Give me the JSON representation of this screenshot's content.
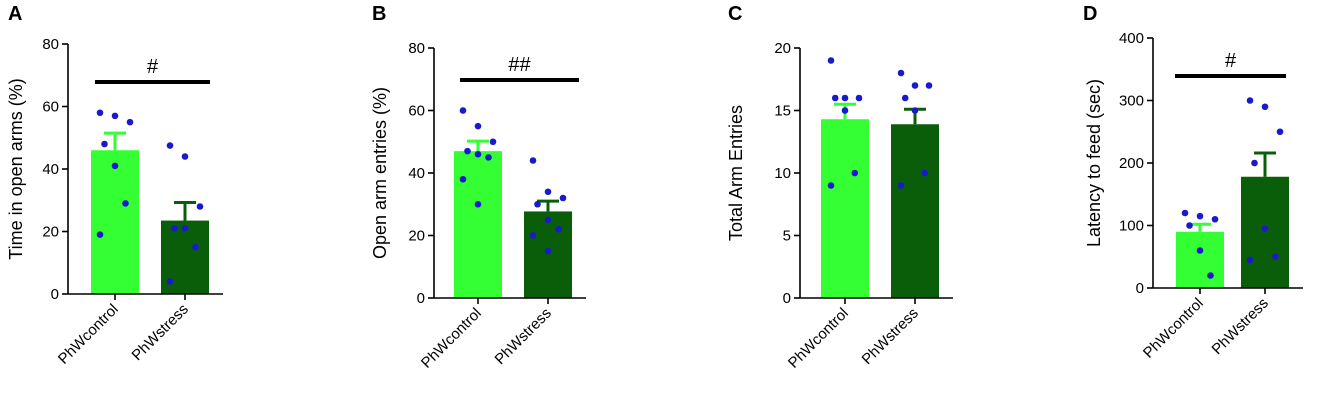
{
  "colors": {
    "control_bar": "#33ff33",
    "stress_bar": "#0a5e0a",
    "dot": "#1a1acc",
    "axis": "#000000"
  },
  "chart_data": [
    {
      "type": "bar",
      "panel": "A",
      "ylabel": "Time in open arms (%)",
      "ylim": [
        0,
        80
      ],
      "yticks": [
        0,
        20,
        40,
        60,
        80
      ],
      "categories": [
        "PhWcontrol",
        "PhWstress"
      ],
      "values": [
        46,
        23.5
      ],
      "sem": [
        5.5,
        5.8
      ],
      "points": [
        [
          58,
          57,
          55,
          48,
          41,
          29,
          19
        ],
        [
          47.5,
          44,
          28,
          21,
          21,
          15,
          4
        ]
      ],
      "significance": "#"
    },
    {
      "type": "bar",
      "panel": "B",
      "ylabel": "Open arm entries (%)",
      "ylim": [
        0,
        80
      ],
      "yticks": [
        0,
        20,
        40,
        60,
        80
      ],
      "categories": [
        "PhWcontrol",
        "PhWstress"
      ],
      "values": [
        47,
        27.7
      ],
      "sem": [
        3.2,
        3.3
      ],
      "points": [
        [
          60,
          55,
          50,
          47,
          46,
          45,
          38,
          30
        ],
        [
          44,
          34,
          32,
          30,
          25,
          22,
          20,
          15
        ]
      ],
      "significance": "##"
    },
    {
      "type": "bar",
      "panel": "C",
      "ylabel": "Total Arm Entries",
      "ylim": [
        0,
        20
      ],
      "yticks": [
        0,
        5,
        10,
        15,
        20
      ],
      "categories": [
        "PhWcontrol",
        "PhWstress"
      ],
      "values": [
        14.3,
        13.9
      ],
      "sem": [
        1.2,
        1.2
      ],
      "points": [
        [
          19,
          16,
          16,
          16,
          15,
          10,
          9
        ],
        [
          18,
          17,
          17,
          16,
          15,
          10,
          9
        ]
      ],
      "significance": ""
    },
    {
      "type": "bar",
      "panel": "D",
      "ylabel": "Latency to feed (sec)",
      "ylim": [
        0,
        400
      ],
      "yticks": [
        0,
        100,
        200,
        300,
        400
      ],
      "categories": [
        "PhWcontrol",
        "PhWstress"
      ],
      "values": [
        90,
        178
      ],
      "sem": [
        12,
        38
      ],
      "points": [
        [
          120,
          115,
          110,
          100,
          60,
          20
        ],
        [
          300,
          290,
          250,
          200,
          95,
          50,
          45
        ]
      ],
      "significance": "#"
    }
  ]
}
